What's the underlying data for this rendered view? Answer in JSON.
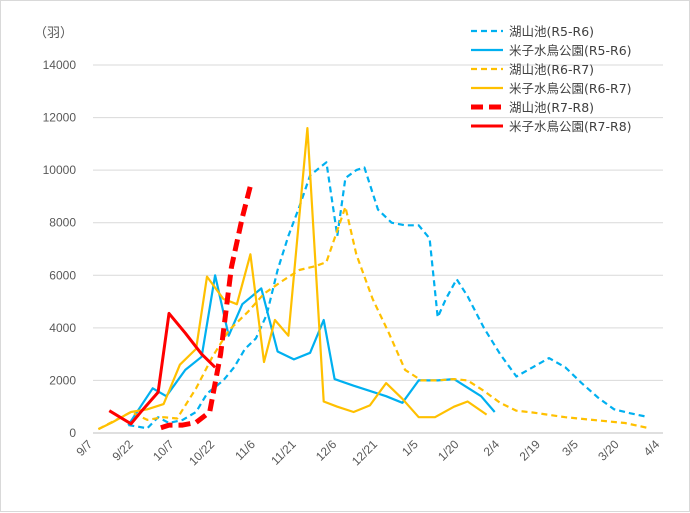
{
  "chart_data": {
    "type": "line",
    "unit_label": "（羽）",
    "y_ticks": [
      "0",
      "2000",
      "4000",
      "6000",
      "8000",
      "10000",
      "12000",
      "14000"
    ],
    "ylim": [
      0,
      14000
    ],
    "x_axis": {
      "start_day": 0,
      "end_day": 210,
      "ticks": [
        {
          "label": "9/7",
          "day": 0
        },
        {
          "label": "9/22",
          "day": 15
        },
        {
          "label": "10/7",
          "day": 30
        },
        {
          "label": "10/22",
          "day": 45
        },
        {
          "label": "11/6",
          "day": 60
        },
        {
          "label": "11/21",
          "day": 75
        },
        {
          "label": "12/6",
          "day": 90
        },
        {
          "label": "12/21",
          "day": 105
        },
        {
          "label": "1/5",
          "day": 120
        },
        {
          "label": "1/20",
          "day": 135
        },
        {
          "label": "2/4",
          "day": 150
        },
        {
          "label": "2/19",
          "day": 165
        },
        {
          "label": "3/5",
          "day": 179
        },
        {
          "label": "3/20",
          "day": 194
        },
        {
          "label": "4/4",
          "day": 209
        }
      ]
    },
    "series": [
      {
        "name": "湖山池(R5-R6)",
        "color": "#00B0F0",
        "style": "dashed",
        "points": [
          [
            13,
            300
          ],
          [
            16,
            250
          ],
          [
            20,
            180
          ],
          [
            24,
            600
          ],
          [
            28,
            380
          ],
          [
            33,
            500
          ],
          [
            38,
            800
          ],
          [
            42,
            1500
          ],
          [
            48,
            2000
          ],
          [
            52,
            2500
          ],
          [
            56,
            3200
          ],
          [
            60,
            3600
          ],
          [
            64,
            4500
          ],
          [
            68,
            6200
          ],
          [
            72,
            7500
          ],
          [
            76,
            8600
          ],
          [
            80,
            9800
          ],
          [
            86,
            10300
          ],
          [
            90,
            7500
          ],
          [
            93,
            9700
          ],
          [
            97,
            10000
          ],
          [
            100,
            10100
          ],
          [
            105,
            8500
          ],
          [
            110,
            8000
          ],
          [
            115,
            7900
          ],
          [
            120,
            7900
          ],
          [
            124,
            7400
          ],
          [
            127,
            4400
          ],
          [
            130,
            5100
          ],
          [
            134,
            5850
          ],
          [
            138,
            5200
          ],
          [
            144,
            4000
          ],
          [
            150,
            3000
          ],
          [
            156,
            2150
          ],
          [
            162,
            2500
          ],
          [
            168,
            2850
          ],
          [
            174,
            2500
          ],
          [
            180,
            1900
          ],
          [
            186,
            1350
          ],
          [
            192,
            900
          ],
          [
            198,
            750
          ],
          [
            204,
            620
          ]
        ]
      },
      {
        "name": "米子水鳥公園(R5-R6)",
        "color": "#00B0F0",
        "style": "solid",
        "points": [
          [
            13,
            300
          ],
          [
            22,
            1700
          ],
          [
            27,
            1400
          ],
          [
            34,
            2400
          ],
          [
            40,
            2900
          ],
          [
            45,
            6000
          ],
          [
            50,
            3700
          ],
          [
            55,
            4900
          ],
          [
            62,
            5500
          ],
          [
            68,
            3100
          ],
          [
            74,
            2800
          ],
          [
            80,
            3050
          ],
          [
            85,
            4300
          ],
          [
            89,
            2050
          ],
          [
            96,
            1800
          ],
          [
            102,
            1600
          ],
          [
            108,
            1400
          ],
          [
            114,
            1150
          ],
          [
            120,
            2000
          ],
          [
            127,
            2000
          ],
          [
            133,
            2050
          ],
          [
            143,
            1400
          ],
          [
            148,
            800
          ]
        ]
      },
      {
        "name": "湖山池(R6-R7)",
        "color": "#FFC000",
        "style": "dashed",
        "points": [
          [
            2,
            150
          ],
          [
            14,
            800
          ],
          [
            20,
            500
          ],
          [
            26,
            600
          ],
          [
            31,
            550
          ],
          [
            38,
            1700
          ],
          [
            44,
            2900
          ],
          [
            50,
            3900
          ],
          [
            57,
            4600
          ],
          [
            63,
            5300
          ],
          [
            70,
            5800
          ],
          [
            76,
            6200
          ],
          [
            82,
            6350
          ],
          [
            86,
            6500
          ],
          [
            93,
            8600
          ],
          [
            97,
            6800
          ],
          [
            103,
            5100
          ],
          [
            109,
            3800
          ],
          [
            115,
            2400
          ],
          [
            121,
            2000
          ],
          [
            127,
            2000
          ],
          [
            133,
            2050
          ],
          [
            138,
            2000
          ],
          [
            144,
            1600
          ],
          [
            150,
            1150
          ],
          [
            156,
            850
          ],
          [
            162,
            780
          ],
          [
            174,
            600
          ],
          [
            184,
            500
          ],
          [
            196,
            380
          ],
          [
            204,
            200
          ]
        ]
      },
      {
        "name": "米子水鳥公園(R6-R7)",
        "color": "#FFC000",
        "style": "solid",
        "points": [
          [
            2,
            150
          ],
          [
            7,
            400
          ],
          [
            14,
            800
          ],
          [
            20,
            900
          ],
          [
            26,
            1100
          ],
          [
            32,
            2600
          ],
          [
            38,
            3200
          ],
          [
            42,
            5950
          ],
          [
            48,
            5100
          ],
          [
            53,
            4900
          ],
          [
            58,
            6800
          ],
          [
            63,
            2700
          ],
          [
            67,
            4300
          ],
          [
            72,
            3700
          ],
          [
            79,
            11600
          ],
          [
            85,
            1200
          ],
          [
            90,
            1000
          ],
          [
            96,
            800
          ],
          [
            102,
            1050
          ],
          [
            108,
            1900
          ],
          [
            114,
            1300
          ],
          [
            120,
            600
          ],
          [
            126,
            600
          ],
          [
            133,
            1000
          ],
          [
            138,
            1200
          ],
          [
            145,
            700
          ]
        ]
      },
      {
        "name": "湖山池(R7-R8)",
        "color": "#FF0000",
        "style": "bigdashed",
        "points": [
          [
            25,
            200
          ],
          [
            28,
            300
          ],
          [
            33,
            300
          ],
          [
            38,
            400
          ],
          [
            43,
            800
          ],
          [
            47,
            3000
          ],
          [
            51,
            6300
          ],
          [
            55,
            8200
          ],
          [
            58,
            9400
          ]
        ]
      },
      {
        "name": "米子水鳥公園(R7-R8)",
        "color": "#FF0000",
        "style": "solid-thick",
        "points": [
          [
            6,
            850
          ],
          [
            14,
            350
          ],
          [
            18,
            850
          ],
          [
            24,
            1550
          ],
          [
            28,
            4550
          ],
          [
            34,
            3800
          ],
          [
            40,
            3000
          ],
          [
            45,
            2500
          ]
        ]
      }
    ],
    "legend": {
      "placement": "top-right",
      "entries": [
        "湖山池(R5-R6)",
        "米子水鳥公園(R5-R6)",
        "湖山池(R6-R7)",
        "米子水鳥公園(R6-R7)",
        "湖山池(R7-R8)",
        "米子水鳥公園(R7-R8)"
      ]
    },
    "grid": true
  }
}
